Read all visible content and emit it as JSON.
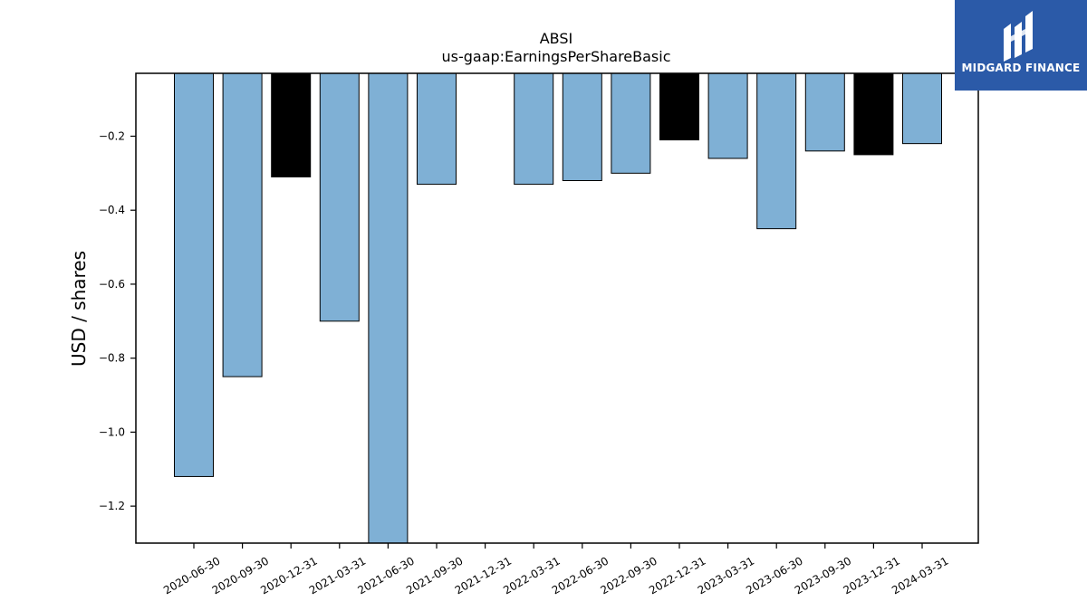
{
  "chart_data": {
    "type": "bar",
    "title": "ABSI",
    "subtitle": "us-gaap:EarningsPerShareBasic",
    "ylabel": "USD / shares",
    "xlabel": "",
    "ylim": [
      -1.3,
      -0.03
    ],
    "yticks": [
      -0.2,
      -0.4,
      -0.6,
      -0.8,
      -1.0,
      -1.2
    ],
    "ytick_labels": [
      "−0.2",
      "−0.4",
      "−0.6",
      "−0.8",
      "−1.0",
      "−1.2"
    ],
    "categories": [
      "2020-06-30",
      "2020-09-30",
      "2020-12-31",
      "2021-03-31",
      "2021-06-30",
      "2021-09-30",
      "2021-12-31",
      "2022-03-31",
      "2022-06-30",
      "2022-09-30",
      "2022-12-31",
      "2023-03-31",
      "2023-06-30",
      "2023-09-30",
      "2023-12-31",
      "2024-03-31"
    ],
    "values": [
      -1.12,
      -0.85,
      -0.31,
      -0.7,
      -1.35,
      -0.33,
      null,
      -0.33,
      -0.32,
      -0.3,
      -0.21,
      -0.26,
      -0.45,
      -0.24,
      -0.25,
      -0.22
    ],
    "colors": [
      "#7fb0d5",
      "#7fb0d5",
      "#000000",
      "#7fb0d5",
      "#7fb0d5",
      "#7fb0d5",
      null,
      "#7fb0d5",
      "#7fb0d5",
      "#7fb0d5",
      "#000000",
      "#7fb0d5",
      "#7fb0d5",
      "#7fb0d5",
      "#000000",
      "#7fb0d5"
    ],
    "grid": false,
    "legend": "none"
  },
  "logo": {
    "text": "MIDGARD FINANCE",
    "icon": "midgard-logo-icon",
    "background": "#2b5aa8"
  }
}
